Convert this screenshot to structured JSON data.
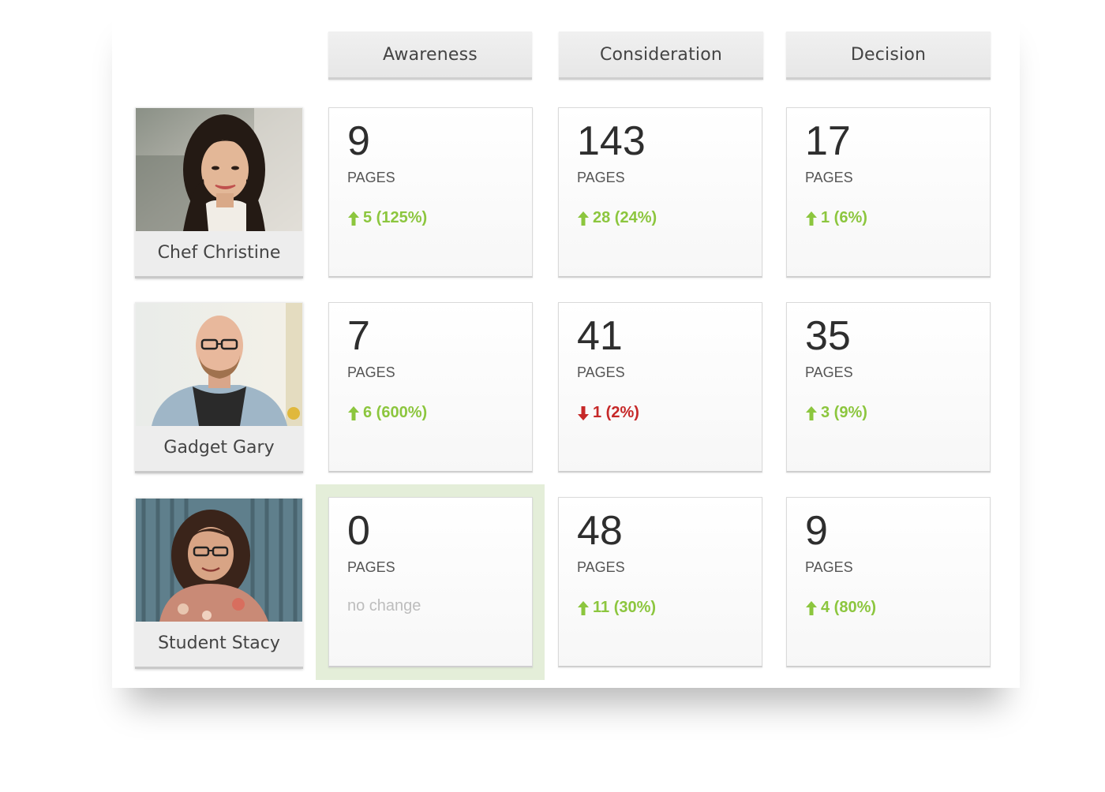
{
  "stages": [
    "Awareness",
    "Consideration",
    "Decision"
  ],
  "unit_label": "PAGES",
  "colors": {
    "up": "#8cc63e",
    "down": "#c62828",
    "none": "#bdbdbd",
    "highlight": "#e4eed9"
  },
  "personas": [
    {
      "name": "Chef Christine",
      "photo_icon": "woman-portrait-photo",
      "cells": [
        {
          "value": "9",
          "change": "5 (125%)",
          "direction": "up"
        },
        {
          "value": "143",
          "change": "28 (24%)",
          "direction": "up"
        },
        {
          "value": "17",
          "change": "1 (6%)",
          "direction": "up"
        }
      ]
    },
    {
      "name": "Gadget Gary",
      "photo_icon": "man-portrait-photo",
      "cells": [
        {
          "value": "7",
          "change": "6 (600%)",
          "direction": "up"
        },
        {
          "value": "41",
          "change": "1 (2%)",
          "direction": "down"
        },
        {
          "value": "35",
          "change": "3 (9%)",
          "direction": "up"
        }
      ]
    },
    {
      "name": "Student Stacy",
      "photo_icon": "girl-portrait-photo",
      "cells": [
        {
          "value": "0",
          "change": "no change",
          "direction": "none"
        },
        {
          "value": "48",
          "change": "11 (30%)",
          "direction": "up"
        },
        {
          "value": "9",
          "change": "4 (80%)",
          "direction": "up"
        }
      ]
    }
  ]
}
